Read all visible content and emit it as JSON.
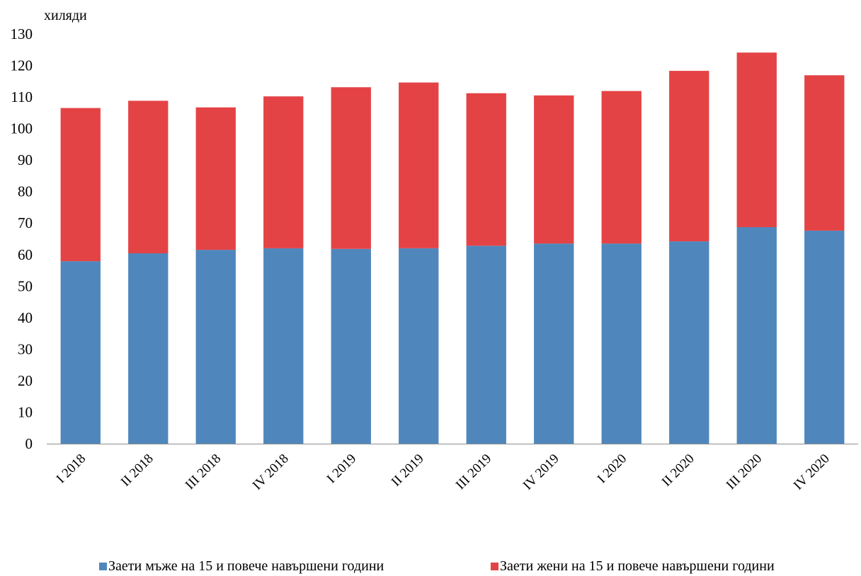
{
  "chart_data": {
    "type": "bar",
    "stacked": true,
    "unit_label": "хиляди",
    "title": "",
    "xlabel": "",
    "ylabel": "",
    "categories": [
      "I 2018",
      "II 2018",
      "III 2018",
      "IV 2018",
      "I 2019",
      "II 2019",
      "III 2019",
      "IV 2019",
      "I 2020",
      "II 2020",
      "III 2020",
      "IV 2020"
    ],
    "series": [
      {
        "name": "Заети мъже на 15 и повече навършени години",
        "color": "#4f87bc",
        "values": [
          57.9,
          60.4,
          61.5,
          62.0,
          61.8,
          62.0,
          62.8,
          63.5,
          63.5,
          64.2,
          68.7,
          67.6
        ]
      },
      {
        "name": "Заети жени на 15 и повече навършени години",
        "color": "#e44346",
        "values": [
          48.6,
          48.4,
          45.2,
          48.2,
          51.3,
          52.6,
          48.4,
          47.0,
          48.4,
          54.1,
          55.4,
          49.3
        ]
      }
    ],
    "ylim": [
      0,
      130
    ],
    "yticks": [
      0,
      10,
      20,
      30,
      40,
      50,
      60,
      70,
      80,
      90,
      100,
      110,
      120,
      130
    ],
    "grid": false,
    "legend_position": "bottom"
  }
}
